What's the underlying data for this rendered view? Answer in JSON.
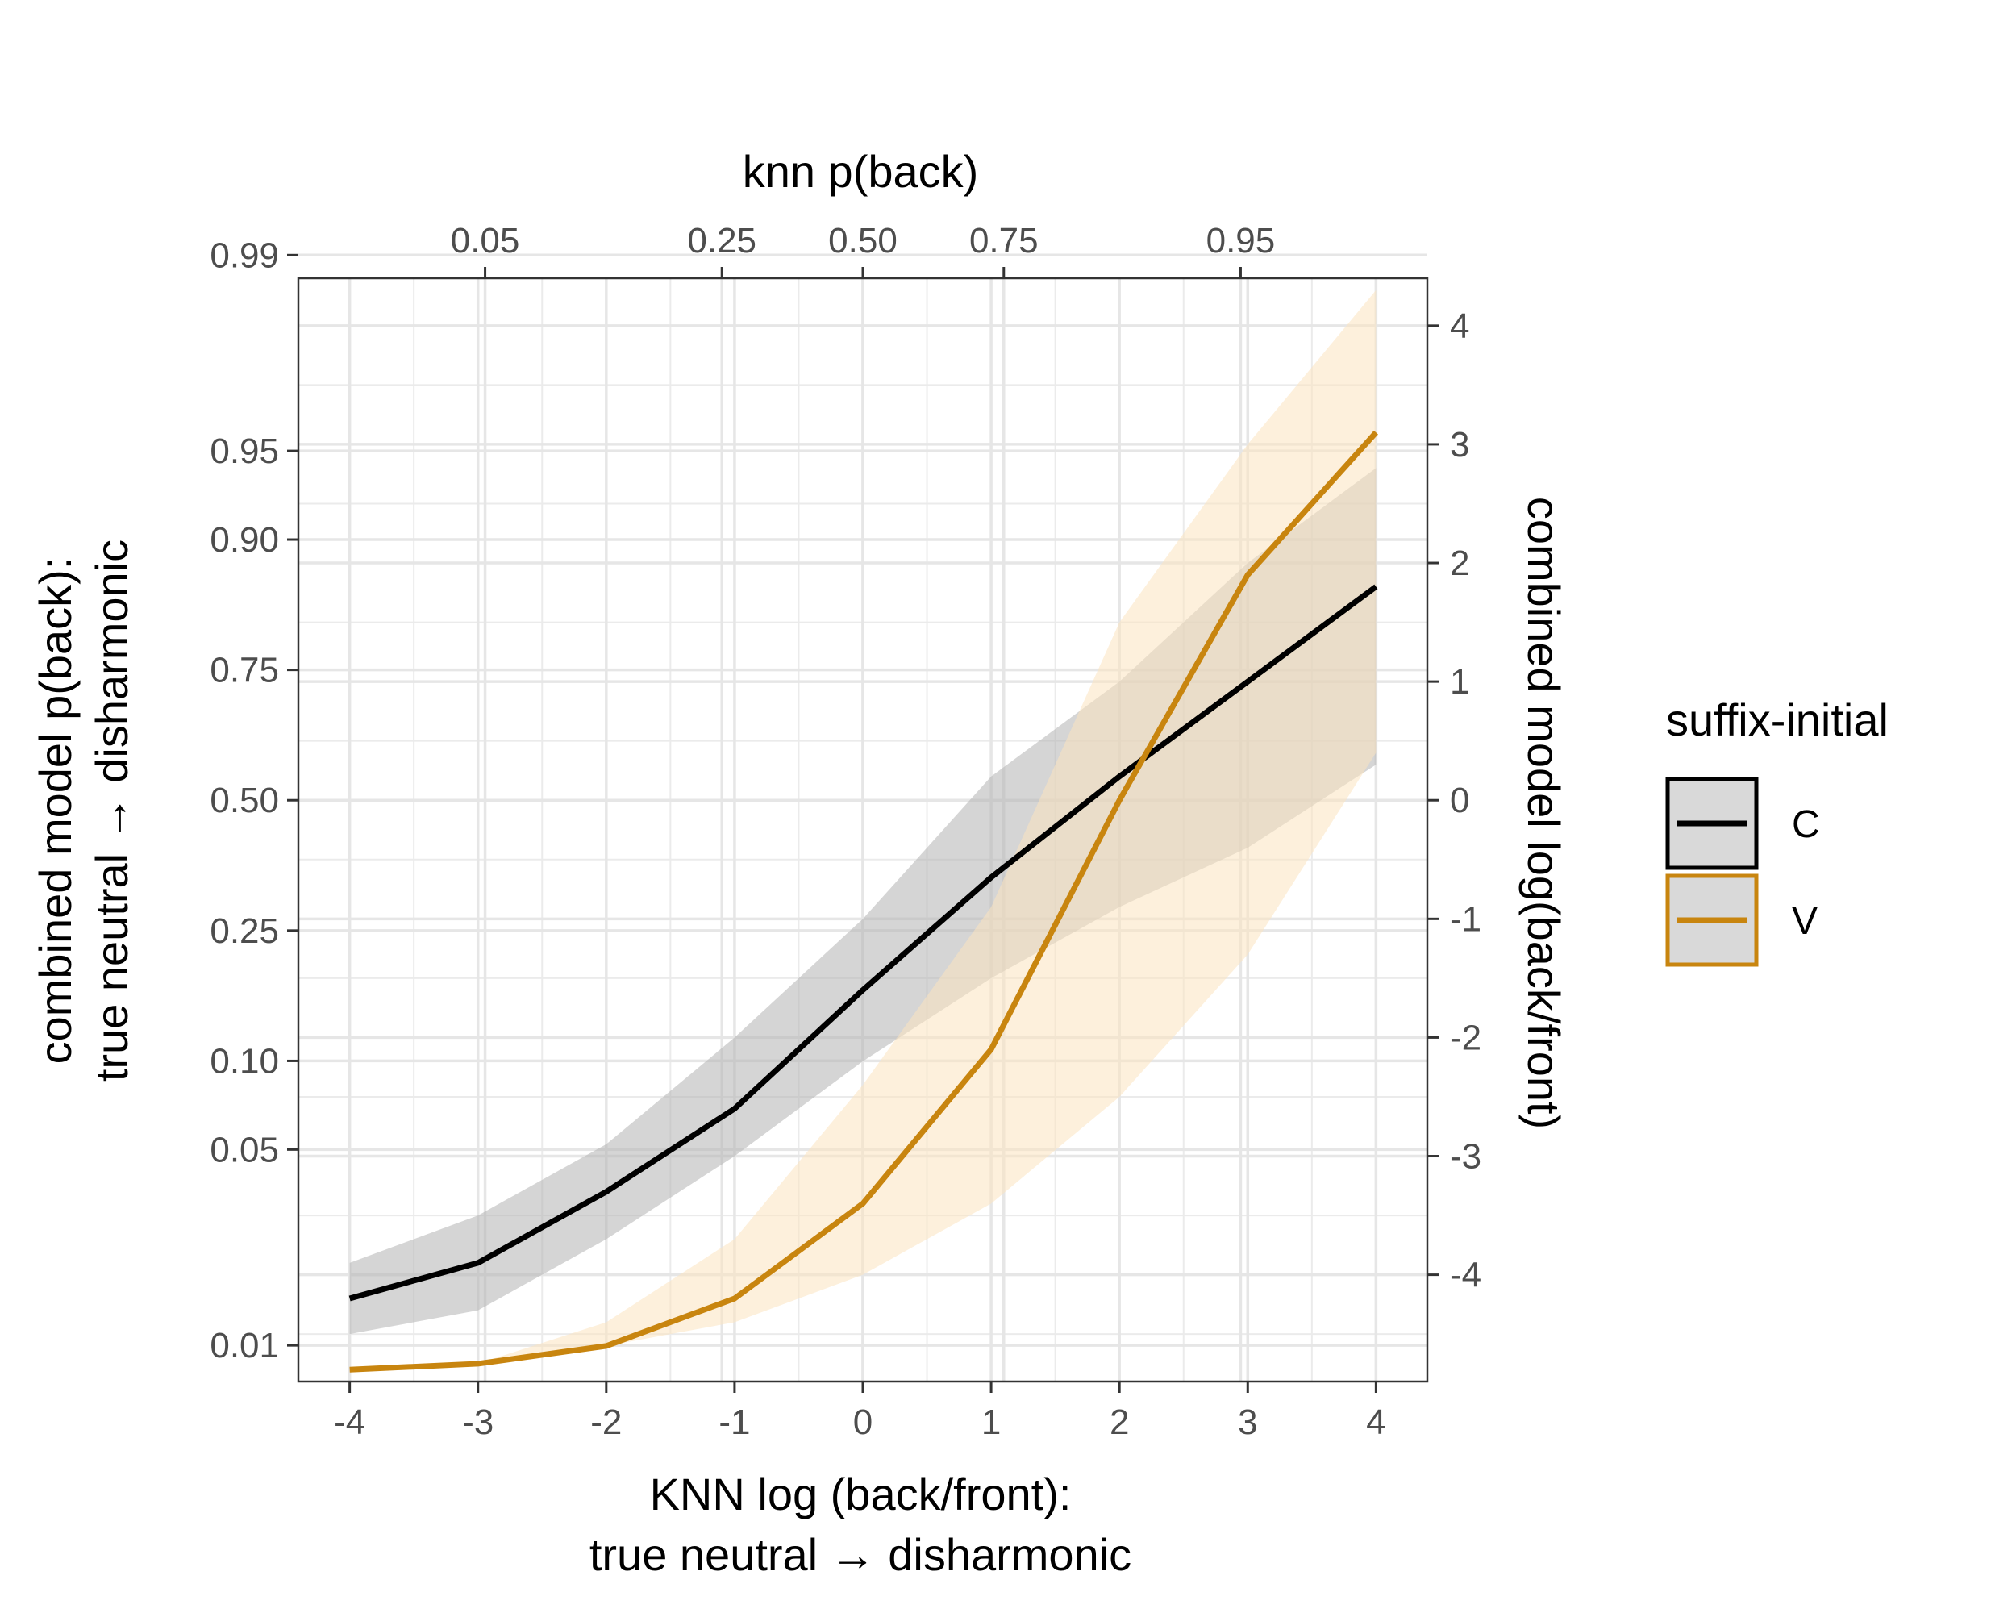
{
  "chart_data": {
    "type": "line",
    "xlabel_bottom": [
      "KNN log (back/front):",
      "true neutral → disharmonic"
    ],
    "xlabel_top": "knn p(back)",
    "ylabel_left": [
      "combined model p(back):",
      "true neutral → disharmonic"
    ],
    "ylabel_right": "combined model log(back/front)",
    "xlim": [
      -4.4,
      4.4
    ],
    "ylim": [
      -4.9,
      4.4
    ],
    "x_ticks": [
      -4,
      -3,
      -2,
      -1,
      0,
      1,
      2,
      3,
      4
    ],
    "x_tick_labels": [
      "-4",
      "-3",
      "-2",
      "-1",
      "0",
      "1",
      "2",
      "3",
      "4"
    ],
    "top_ticks": [
      0.05,
      0.25,
      0.5,
      0.75,
      0.95
    ],
    "top_tick_labels": [
      "0.05",
      "0.25",
      "0.50",
      "0.75",
      "0.95"
    ],
    "left_ticks": [
      0.01,
      0.05,
      0.1,
      0.25,
      0.5,
      0.75,
      0.9,
      0.95,
      0.99
    ],
    "left_tick_labels": [
      "0.01",
      "0.05",
      "0.10",
      "0.25",
      "0.50",
      "0.75",
      "0.90",
      "0.95",
      "0.99"
    ],
    "right_ticks": [
      -4,
      -3,
      -2,
      -1,
      0,
      1,
      2,
      3,
      4
    ],
    "right_tick_labels": [
      "-4",
      "-3",
      "-2",
      "-1",
      "0",
      "1",
      "2",
      "3",
      "4"
    ],
    "grid": true,
    "legend": {
      "title": "suffix-initial",
      "position": "right",
      "entries": [
        "C",
        "V"
      ]
    },
    "series": [
      {
        "name": "C",
        "color": "#000000",
        "fill": "#b3b3b3",
        "x": [
          -4,
          -3,
          -2,
          -1,
          0,
          1,
          2,
          3,
          4
        ],
        "y": [
          -4.2,
          -3.9,
          -3.3,
          -2.6,
          -1.6,
          -0.65,
          0.2,
          1.0,
          1.8
        ],
        "y_lower": [
          -4.5,
          -4.3,
          -3.7,
          -3.0,
          -2.2,
          -1.5,
          -0.9,
          -0.4,
          0.3
        ],
        "y_upper": [
          -3.9,
          -3.5,
          -2.9,
          -2.0,
          -1.0,
          0.2,
          1.0,
          2.0,
          2.8
        ]
      },
      {
        "name": "V",
        "color": "#c8850f",
        "fill": "#fce4bf",
        "x": [
          -4,
          -3,
          -2,
          -1,
          0,
          1,
          2,
          3,
          4
        ],
        "y": [
          -4.8,
          -4.75,
          -4.6,
          -4.2,
          -3.4,
          -2.1,
          0.0,
          1.9,
          3.1
        ],
        "y_lower": [
          -4.8,
          -4.75,
          -4.6,
          -4.4,
          -4.0,
          -3.4,
          -2.5,
          -1.3,
          0.4
        ],
        "y_upper": [
          -4.8,
          -4.75,
          -4.4,
          -3.7,
          -2.4,
          -0.9,
          1.5,
          3.0,
          4.3
        ]
      }
    ]
  }
}
